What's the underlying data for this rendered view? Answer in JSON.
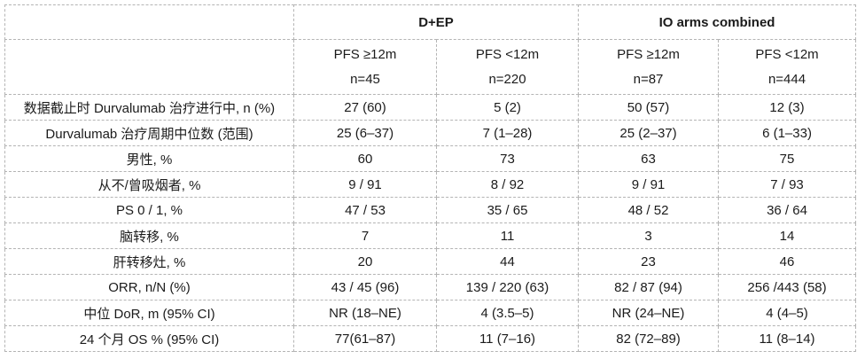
{
  "colors": {
    "background": "#ffffff",
    "border": "#b4b4b4",
    "text": "#1b1b1b"
  },
  "table": {
    "column_groups": [
      {
        "label": "D+EP"
      },
      {
        "label": "IO arms combined"
      }
    ],
    "sub_columns": [
      {
        "pfs": "PFS ≥12m",
        "n": "n=45"
      },
      {
        "pfs": "PFS <12m",
        "n": "n=220"
      },
      {
        "pfs": "PFS ≥12m",
        "n": "n=87"
      },
      {
        "pfs": "PFS <12m",
        "n": "n=444"
      }
    ],
    "rows": [
      {
        "label": "数据截止时 Durvalumab 治疗进行中, n (%)",
        "values": [
          "27 (60)",
          "5 (2)",
          "50 (57)",
          "12 (3)"
        ]
      },
      {
        "label": "Durvalumab 治疗周期中位数 (范围)",
        "values": [
          "25 (6–37)",
          "7 (1–28)",
          "25 (2–37)",
          "6 (1–33)"
        ]
      },
      {
        "label": "男性, %",
        "values": [
          "60",
          "73",
          "63",
          "75"
        ]
      },
      {
        "label": "从不/曾吸烟者, %",
        "values": [
          "9 / 91",
          "8 / 92",
          "9 / 91",
          "7 / 93"
        ]
      },
      {
        "label": "PS 0 / 1, %",
        "values": [
          "47 / 53",
          "35 / 65",
          "48 / 52",
          "36 / 64"
        ]
      },
      {
        "label": "脑转移, %",
        "values": [
          "7",
          "11",
          "3",
          "14"
        ]
      },
      {
        "label": "肝转移灶, %",
        "values": [
          "20",
          "44",
          "23",
          "46"
        ]
      },
      {
        "label": "ORR, n/N (%)",
        "values": [
          "43 / 45 (96)",
          "139 / 220 (63)",
          "82 / 87 (94)",
          "256 /443 (58)"
        ]
      },
      {
        "label": "中位 DoR, m (95% CI)",
        "values": [
          "NR (18–NE)",
          "4 (3.5–5)",
          "NR (24–NE)",
          "4 (4–5)"
        ]
      },
      {
        "label": "24 个月 OS % (95% CI)",
        "values": [
          "77(61–87)",
          "11 (7–16)",
          "82 (72–89)",
          "11 (8–14)"
        ]
      }
    ]
  }
}
